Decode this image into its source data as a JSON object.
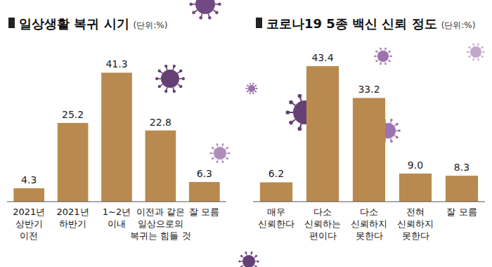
{
  "chart_data": [
    {
      "type": "bar",
      "title": "일상생활 복귀 시기",
      "subtitle": "(단위:%)",
      "categories": [
        "2021년\n상반기\n이전",
        "2021년\n하반기",
        "1~2년\n이내",
        "이전과 같은\n일상으로의\n복귀는 힘들 것",
        "잘 모름"
      ],
      "values": [
        4.3,
        25.2,
        41.3,
        22.8,
        6.3
      ],
      "value_labels": [
        "4.3",
        "25.2",
        "41.3",
        "22.8",
        "6.3"
      ],
      "color": "#b98a4f",
      "ylim": [
        0,
        45
      ],
      "data_labels": true,
      "tick_labels": "x",
      "grid": false
    },
    {
      "type": "bar",
      "title": "코로나19 5종 백신 신뢰 정도",
      "subtitle": "(단위:%)",
      "categories": [
        "매우\n신뢰한다",
        "다소\n신뢰하는\n편이다",
        "다소\n신뢰하지\n못한다",
        "전혀\n신뢰하지\n못한다",
        "잘 모름"
      ],
      "values": [
        6.2,
        43.4,
        33.2,
        9.0,
        8.3
      ],
      "value_labels": [
        "6.2",
        "43.4",
        "33.2",
        "9.0",
        "8.3"
      ],
      "color": "#b98a4f",
      "ylim": [
        0,
        45
      ],
      "data_labels": true,
      "tick_labels": "x",
      "grid": false
    }
  ]
}
